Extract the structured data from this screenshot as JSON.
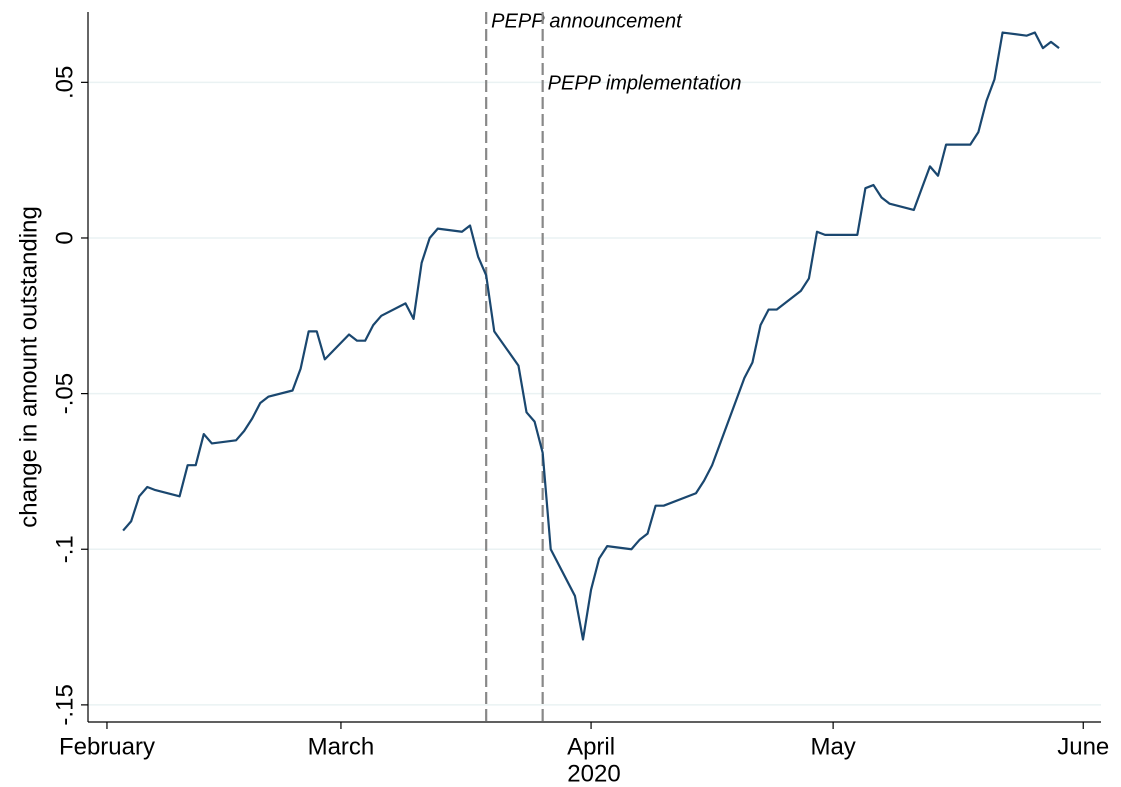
{
  "chart_data": {
    "type": "line",
    "y_label": "change in amount outstanding",
    "x_label": "2020",
    "color": "#1a476f",
    "grid": true,
    "x": [
      34,
      35,
      36,
      37,
      38,
      41,
      42,
      43,
      44,
      45,
      48,
      49,
      50,
      51,
      52,
      55,
      56,
      57,
      58,
      59,
      62,
      63,
      64,
      65,
      66,
      69,
      70,
      71,
      72,
      73,
      76,
      77,
      78,
      79,
      80,
      83,
      84,
      85,
      86,
      87,
      90,
      91,
      92,
      93,
      94,
      97,
      98,
      99,
      100,
      101,
      105,
      106,
      107,
      111,
      112,
      113,
      114,
      115,
      118,
      119,
      120,
      121,
      125,
      126,
      127,
      128,
      129,
      132,
      133,
      134,
      135,
      136,
      139,
      140,
      141,
      142,
      143,
      146,
      147,
      148,
      149,
      150
    ],
    "values": [
      -0.094,
      -0.091,
      -0.083,
      -0.08,
      -0.081,
      -0.083,
      -0.073,
      -0.073,
      -0.063,
      -0.066,
      -0.065,
      -0.062,
      -0.058,
      -0.053,
      -0.051,
      -0.049,
      -0.042,
      -0.03,
      -0.03,
      -0.039,
      -0.031,
      -0.033,
      -0.033,
      -0.028,
      -0.025,
      -0.021,
      -0.026,
      -0.008,
      0.0,
      0.003,
      0.002,
      0.004,
      -0.006,
      -0.012,
      -0.03,
      -0.041,
      -0.056,
      -0.059,
      -0.069,
      -0.1,
      -0.115,
      -0.129,
      -0.113,
      -0.103,
      -0.099,
      -0.1,
      -0.097,
      -0.095,
      -0.086,
      -0.086,
      -0.082,
      -0.078,
      -0.073,
      -0.045,
      -0.04,
      -0.028,
      -0.023,
      -0.023,
      -0.017,
      -0.013,
      0.002,
      0.001,
      0.001,
      0.016,
      0.017,
      0.013,
      0.011,
      0.009,
      0.016,
      0.023,
      0.02,
      0.03,
      0.03,
      0.034,
      0.044,
      0.051,
      0.066,
      0.065,
      0.066,
      0.061,
      0.063,
      0.061
    ],
    "xlim": [
      29.65,
      155.2
    ],
    "xticks": [
      {
        "value": 32,
        "label": "February"
      },
      {
        "value": 61,
        "label": "March"
      },
      {
        "value": 92,
        "label": "April"
      },
      {
        "value": 122,
        "label": "May"
      },
      {
        "value": 153,
        "label": "June"
      }
    ],
    "ylim": [
      -0.1555,
      0.0726
    ],
    "yticks": [
      {
        "value": -0.15,
        "label": "-.15"
      },
      {
        "value": -0.1,
        "label": "-.1"
      },
      {
        "value": -0.05,
        "label": "-.05"
      },
      0,
      {
        "value": 0.05,
        "label": ".05"
      }
    ],
    "vlines": [
      {
        "x": 79,
        "label": "PEPP announcement"
      },
      {
        "x": 86,
        "label": "PEPP implementation"
      }
    ]
  }
}
